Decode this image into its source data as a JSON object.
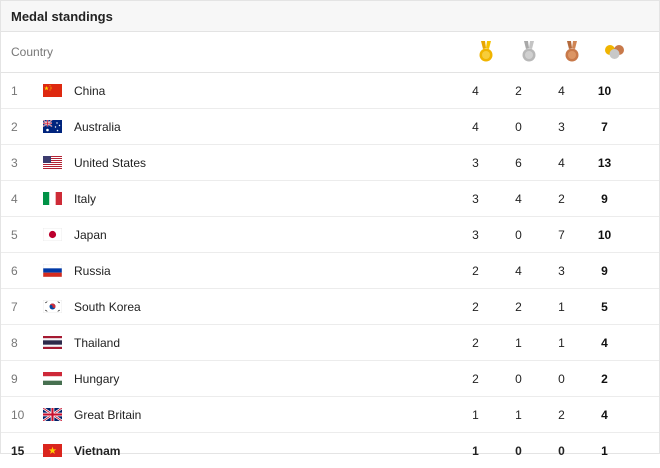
{
  "title": "Medal standings",
  "header": {
    "country_label": "Country",
    "icons": [
      {
        "name": "gold-medal-icon",
        "color": "#f0b400"
      },
      {
        "name": "silver-medal-icon",
        "color": "#b8b8b8"
      },
      {
        "name": "bronze-medal-icon",
        "color": "#c8794a"
      },
      {
        "name": "total-medals-icon",
        "color": "#c8c8c8"
      }
    ]
  },
  "rows": [
    {
      "rank": "1",
      "country": "China",
      "flag": "china",
      "gold": "4",
      "silver": "2",
      "bronze": "4",
      "total": "10"
    },
    {
      "rank": "2",
      "country": "Australia",
      "flag": "australia",
      "gold": "4",
      "silver": "0",
      "bronze": "3",
      "total": "7"
    },
    {
      "rank": "3",
      "country": "United States",
      "flag": "usa",
      "gold": "3",
      "silver": "6",
      "bronze": "4",
      "total": "13"
    },
    {
      "rank": "4",
      "country": "Italy",
      "flag": "italy",
      "gold": "3",
      "silver": "4",
      "bronze": "2",
      "total": "9"
    },
    {
      "rank": "5",
      "country": "Japan",
      "flag": "japan",
      "gold": "3",
      "silver": "0",
      "bronze": "7",
      "total": "10"
    },
    {
      "rank": "6",
      "country": "Russia",
      "flag": "russia",
      "gold": "2",
      "silver": "4",
      "bronze": "3",
      "total": "9"
    },
    {
      "rank": "7",
      "country": "South Korea",
      "flag": "korea",
      "gold": "2",
      "silver": "2",
      "bronze": "1",
      "total": "5"
    },
    {
      "rank": "8",
      "country": "Thailand",
      "flag": "thailand",
      "gold": "2",
      "silver": "1",
      "bronze": "1",
      "total": "4"
    },
    {
      "rank": "9",
      "country": "Hungary",
      "flag": "hungary",
      "gold": "2",
      "silver": "0",
      "bronze": "0",
      "total": "2"
    },
    {
      "rank": "10",
      "country": "Great Britain",
      "flag": "uk",
      "gold": "1",
      "silver": "1",
      "bronze": "2",
      "total": "4"
    },
    {
      "rank": "15",
      "country": "Vietnam",
      "flag": "vietnam",
      "gold": "1",
      "silver": "0",
      "bronze": "0",
      "total": "1",
      "highlight": true
    }
  ]
}
